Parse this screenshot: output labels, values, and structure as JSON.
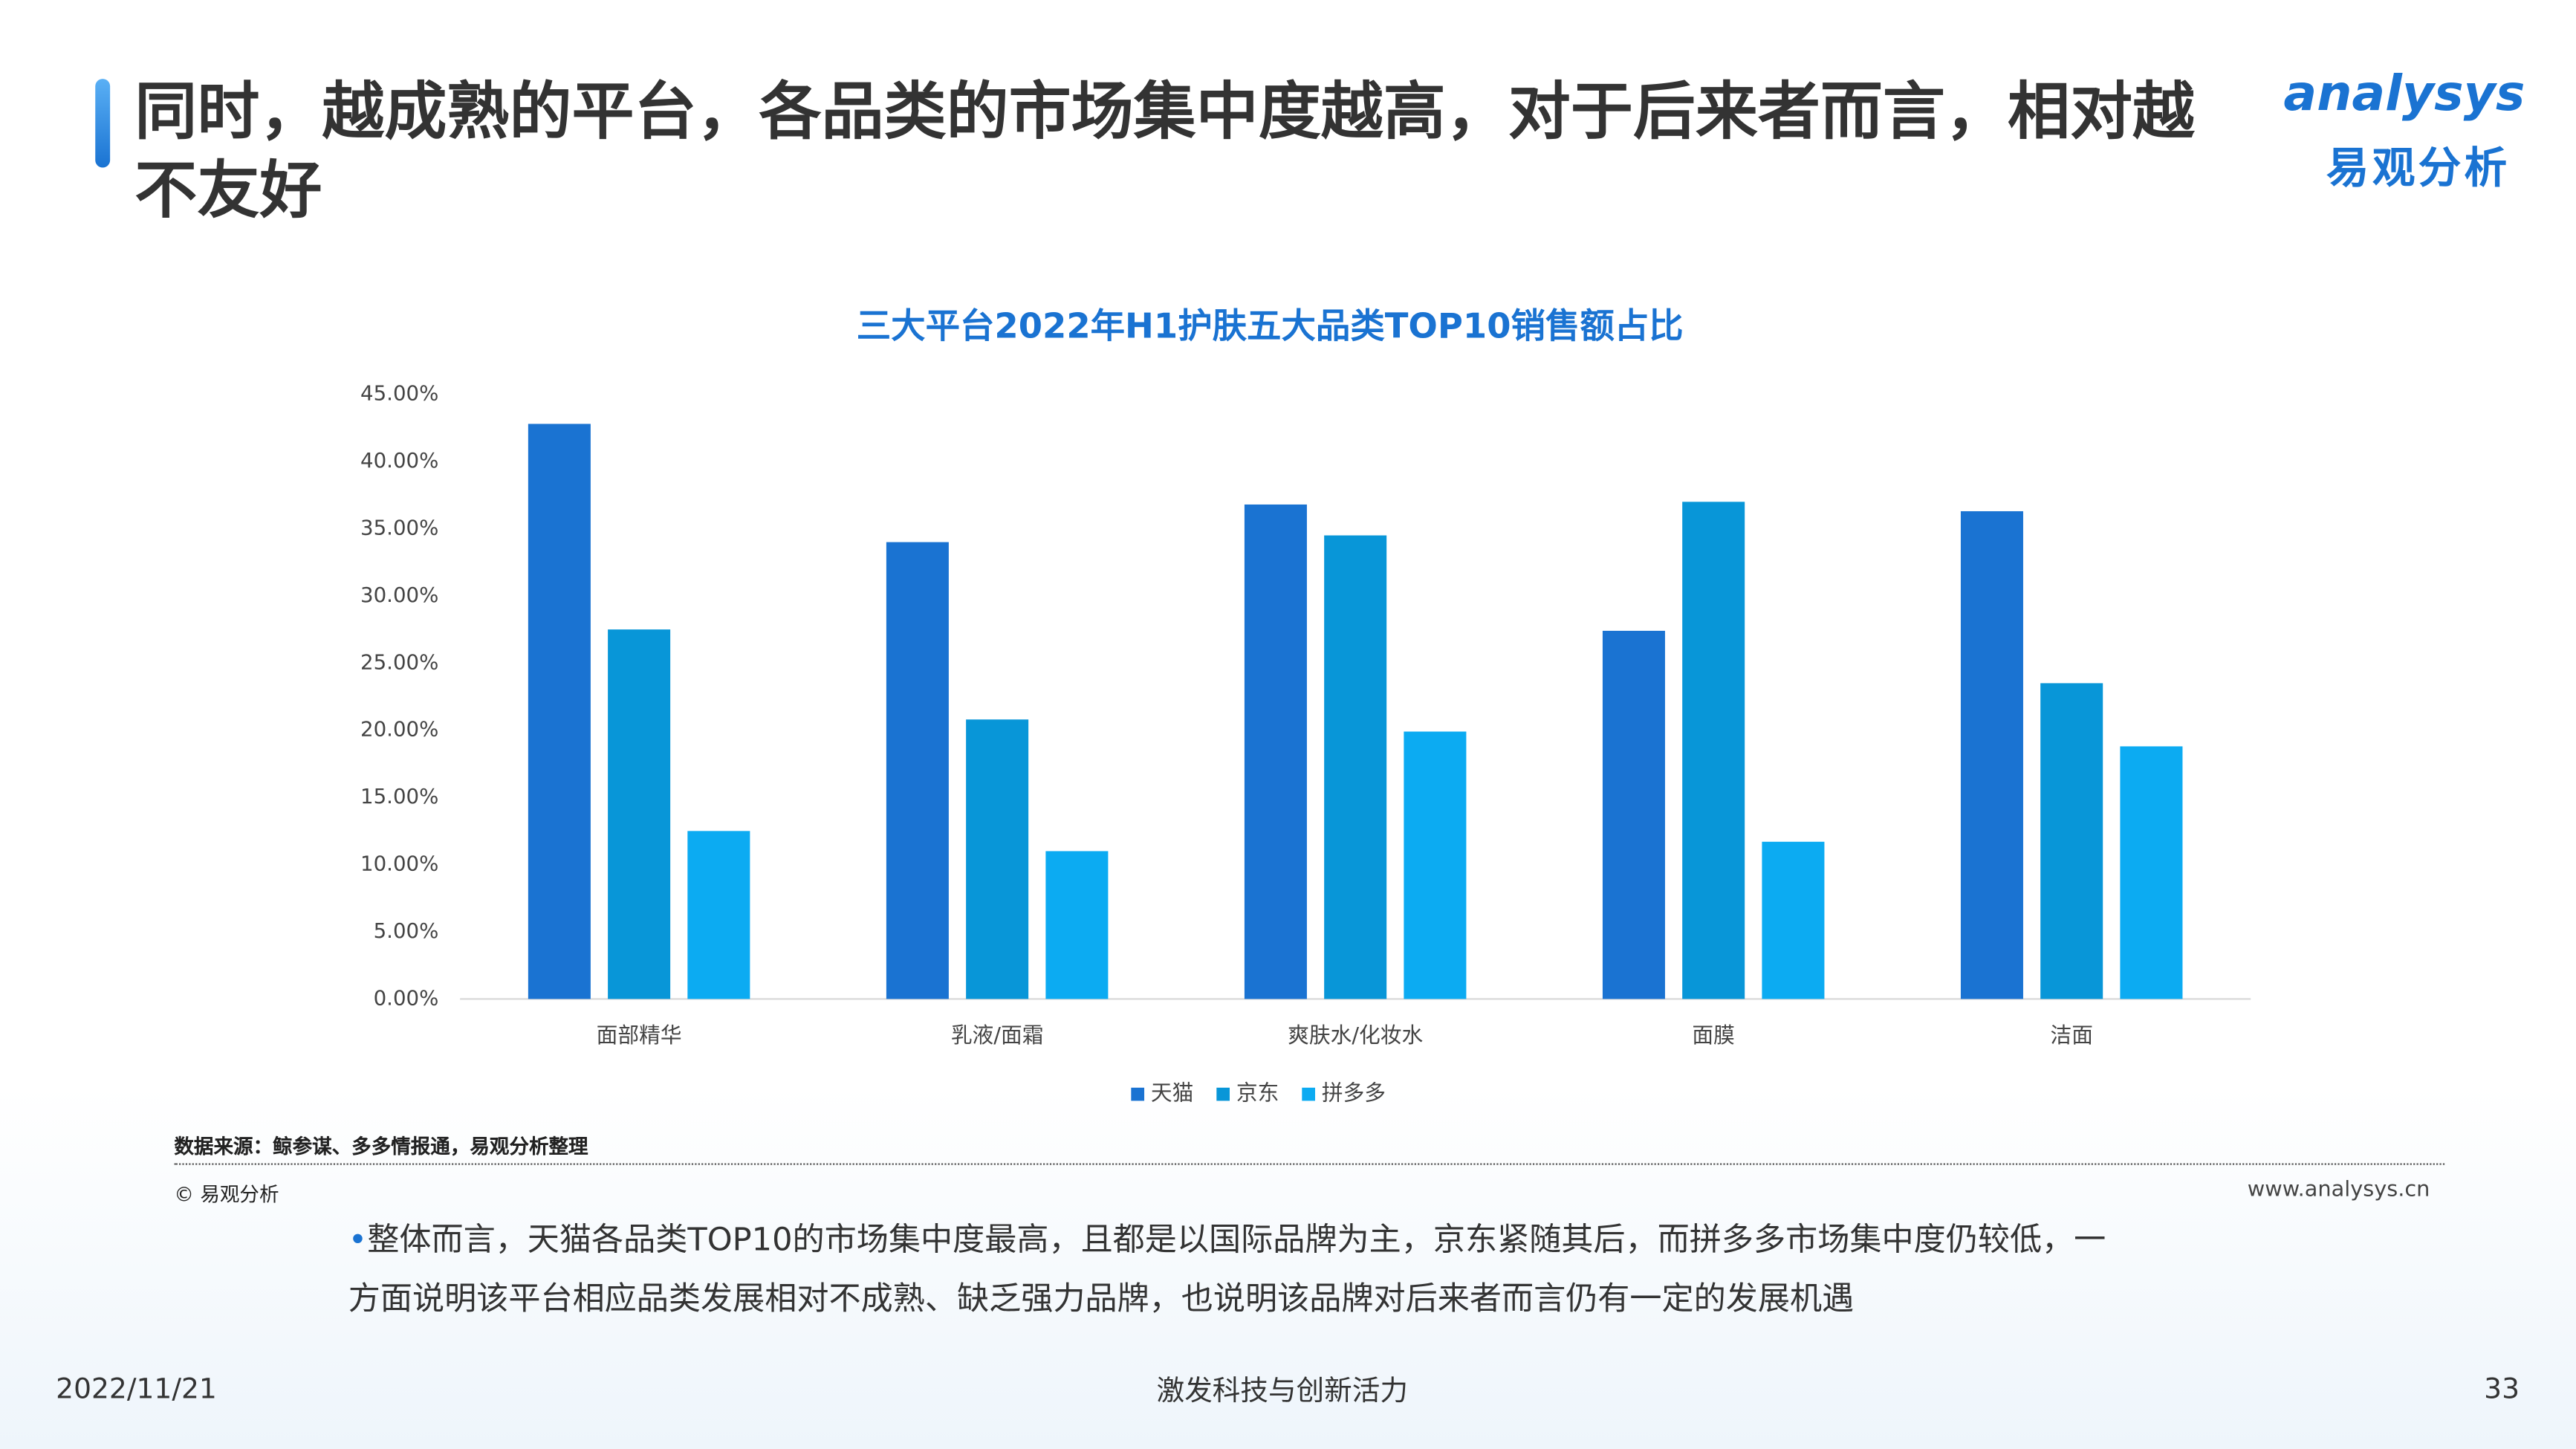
{
  "page": {
    "title": "同时，越成熟的平台，各品类的市场集中度越高，对于后来者而言，相对越不友好",
    "logo_en": "analysys",
    "logo_cn": "易观分析",
    "source": "数据来源：鲸参谋、多多情报通，易观分析整理",
    "copyright": "© 易观分析",
    "website": "www.analysys.cn",
    "body": "整体而言，天猫各品类TOP10的市场集中度最高，且都是以国际品牌为主，京东紧随其后，而拼多多市场集中度仍较低，一方面说明该平台相应品类发展相对不成熟、缺乏强力品牌，也说明该品牌对后来者而言仍有一定的发展机遇",
    "date": "2022/11/21",
    "slogan": "激发科技与创新活力",
    "page_number": "33"
  },
  "chart_data": {
    "type": "bar",
    "title": "三大平台2022年H1护肤五大品类TOP10销售额占比",
    "categories": [
      "面部精华",
      "乳液/面霜",
      "爽肤水/化妆水",
      "面膜",
      "洁面"
    ],
    "series": [
      {
        "name": "天猫",
        "color": "#1a73d2",
        "values": [
          42.8,
          34.0,
          36.8,
          27.4,
          36.3
        ]
      },
      {
        "name": "京东",
        "color": "#0896d8",
        "values": [
          27.5,
          20.8,
          34.5,
          37.0,
          23.5
        ]
      },
      {
        "name": "拼多多",
        "color": "#0cabf2",
        "values": [
          12.5,
          11.0,
          19.9,
          11.7,
          18.8
        ]
      }
    ],
    "ylim": [
      0,
      45
    ],
    "yticks": [
      {
        "value": 0,
        "label": "0.00%"
      },
      {
        "value": 5,
        "label": "5.00%"
      },
      {
        "value": 10,
        "label": "10.00%"
      },
      {
        "value": 15,
        "label": "15.00%"
      },
      {
        "value": 20,
        "label": "20.00%"
      },
      {
        "value": 25,
        "label": "25.00%"
      },
      {
        "value": 30,
        "label": "30.00%"
      },
      {
        "value": 35,
        "label": "35.00%"
      },
      {
        "value": 40,
        "label": "40.00%"
      },
      {
        "value": 45,
        "label": "45.00%"
      }
    ],
    "grid": false,
    "legend": "bottom"
  }
}
